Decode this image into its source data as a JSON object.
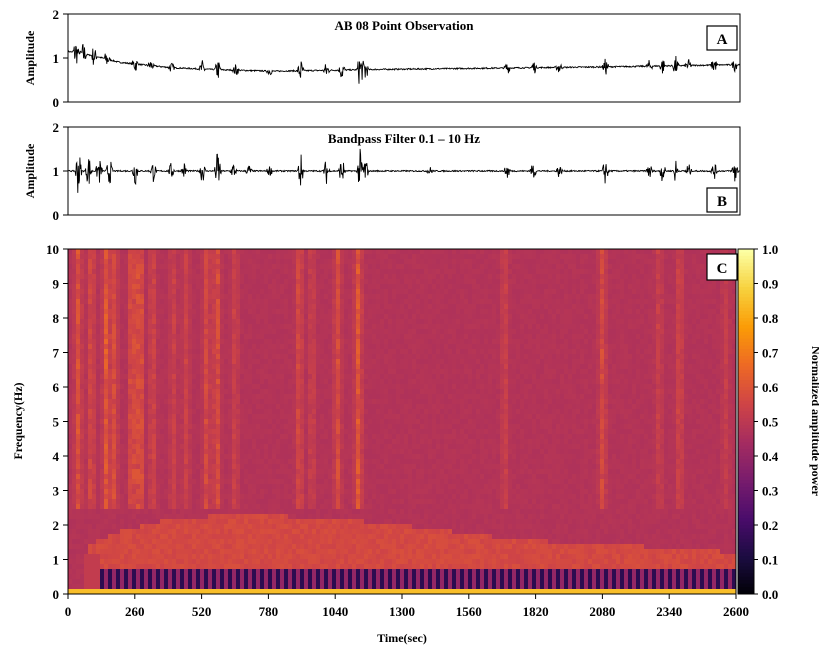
{
  "chart_data": [
    {
      "panel": "A",
      "type": "line",
      "title": "AB 08 Point Observation",
      "ylabel": "Amplitude",
      "xlim": [
        0,
        2600
      ],
      "ylim": [
        0,
        2
      ],
      "yticks": [
        "0",
        "1",
        "2"
      ],
      "trend": {
        "x": [
          0,
          100,
          200,
          400,
          600,
          800,
          1000,
          1200,
          1500,
          1800,
          2100,
          2400,
          2600
        ],
        "y": [
          1.15,
          1.05,
          0.9,
          0.78,
          0.73,
          0.7,
          0.72,
          0.74,
          0.76,
          0.78,
          0.8,
          0.83,
          0.85
        ]
      },
      "bursts": [
        [
          30,
          0.35
        ],
        [
          60,
          0.3
        ],
        [
          100,
          0.25
        ],
        [
          150,
          0.2
        ],
        [
          260,
          0.2
        ],
        [
          320,
          0.15
        ],
        [
          400,
          0.12
        ],
        [
          520,
          0.2
        ],
        [
          580,
          0.25
        ],
        [
          650,
          0.15
        ],
        [
          780,
          0.1
        ],
        [
          900,
          0.3
        ],
        [
          1000,
          0.2
        ],
        [
          1060,
          0.25
        ],
        [
          1130,
          0.45
        ],
        [
          1150,
          0.3
        ],
        [
          1700,
          0.15
        ],
        [
          1800,
          0.2
        ],
        [
          1900,
          0.15
        ],
        [
          2080,
          0.2
        ],
        [
          2250,
          0.15
        ],
        [
          2300,
          0.2
        ],
        [
          2350,
          0.25
        ],
        [
          2400,
          0.15
        ],
        [
          2500,
          0.2
        ],
        [
          2580,
          0.15
        ]
      ]
    },
    {
      "panel": "B",
      "type": "line",
      "title": "Bandpass Filter 0.1 – 10 Hz",
      "ylabel": "Amplitude",
      "xlim": [
        0,
        2600
      ],
      "ylim": [
        0,
        2
      ],
      "yticks": [
        "0",
        "1",
        "2"
      ],
      "trend": {
        "x": [
          0,
          2600
        ],
        "y": [
          1.0,
          1.0
        ]
      },
      "bursts": [
        [
          40,
          0.6
        ],
        [
          80,
          0.4
        ],
        [
          120,
          0.35
        ],
        [
          160,
          0.35
        ],
        [
          260,
          0.35
        ],
        [
          330,
          0.25
        ],
        [
          400,
          0.2
        ],
        [
          450,
          0.2
        ],
        [
          520,
          0.3
        ],
        [
          580,
          0.55
        ],
        [
          640,
          0.2
        ],
        [
          700,
          0.15
        ],
        [
          780,
          0.12
        ],
        [
          900,
          0.45
        ],
        [
          1000,
          0.3
        ],
        [
          1060,
          0.35
        ],
        [
          1130,
          0.5
        ],
        [
          1150,
          0.35
        ],
        [
          1400,
          0.1
        ],
        [
          1700,
          0.2
        ],
        [
          1800,
          0.2
        ],
        [
          1900,
          0.15
        ],
        [
          2080,
          0.35
        ],
        [
          2250,
          0.2
        ],
        [
          2300,
          0.25
        ],
        [
          2350,
          0.3
        ],
        [
          2400,
          0.2
        ],
        [
          2500,
          0.2
        ],
        [
          2580,
          0.35
        ]
      ]
    },
    {
      "panel": "C",
      "type": "heatmap",
      "xlabel": "Time(sec)",
      "ylabel": "Frequency(Hz)",
      "colorbar_label": "Normalized amplitude power",
      "xlim": [
        0,
        2600
      ],
      "ylim": [
        0,
        10
      ],
      "xticks": [
        "0",
        "260",
        "520",
        "780",
        "1040",
        "1300",
        "1560",
        "1820",
        "2080",
        "2340",
        "2600"
      ],
      "yticks": [
        "0",
        "1",
        "2",
        "3",
        "4",
        "5",
        "6",
        "7",
        "8",
        "9",
        "10"
      ],
      "colorbar_ticks": [
        "0.0",
        "0.1",
        "0.2",
        "0.3",
        "0.4",
        "0.5",
        "0.6",
        "0.7",
        "0.8",
        "0.9",
        "1.0"
      ],
      "colormap": [
        "#000004",
        "#1b0c41",
        "#4a0c6b",
        "#781c6d",
        "#a52c60",
        "#cf4446",
        "#ed6925",
        "#fb9b06",
        "#f7d13d",
        "#fcffa4"
      ],
      "background_power": 0.48,
      "high_freq_columns": [
        [
          40,
          0.62
        ],
        [
          90,
          0.6
        ],
        [
          150,
          0.66
        ],
        [
          180,
          0.6
        ],
        [
          250,
          0.64
        ],
        [
          280,
          0.66
        ],
        [
          330,
          0.58
        ],
        [
          410,
          0.56
        ],
        [
          460,
          0.56
        ],
        [
          540,
          0.6
        ],
        [
          580,
          0.62
        ],
        [
          650,
          0.56
        ],
        [
          900,
          0.6
        ],
        [
          950,
          0.56
        ],
        [
          1050,
          0.6
        ],
        [
          1130,
          0.64
        ],
        [
          1700,
          0.56
        ],
        [
          2080,
          0.6
        ],
        [
          2300,
          0.56
        ],
        [
          2380,
          0.58
        ],
        [
          2560,
          0.54
        ]
      ],
      "low_band": {
        "top_hz": [
          [
            100,
            1.5
          ],
          [
            200,
            1.8
          ],
          [
            400,
            2.2
          ],
          [
            700,
            2.3
          ],
          [
            1000,
            2.2
          ],
          [
            1300,
            2.0
          ],
          [
            1600,
            1.7
          ],
          [
            1900,
            1.5
          ],
          [
            2200,
            1.4
          ],
          [
            2600,
            1.2
          ]
        ],
        "power": 0.57
      },
      "dark_band": {
        "from_hz": 0.1,
        "to_hz": 0.7,
        "start_time": 130,
        "power": 0.15
      },
      "bottom_edge_power": 0.85
    }
  ]
}
